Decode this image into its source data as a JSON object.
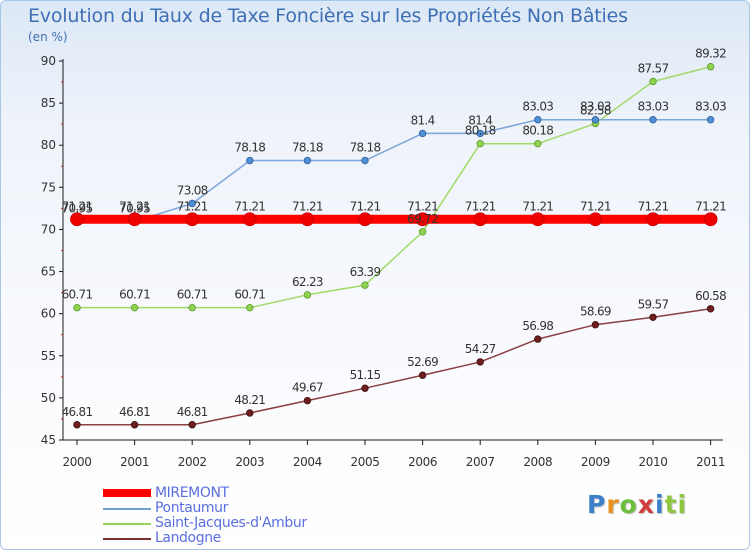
{
  "title": "Evolution du Taux de Taxe Foncière sur les Propriétés Non Bâties",
  "subtitle": "(en %)",
  "logo_text": "Proxiti",
  "chart_data": {
    "type": "line",
    "title": "Evolution du Taux de Taxe Foncière sur les Propriétés Non Bâties",
    "ylabel": "(en %)",
    "xlabel": "",
    "ylim": [
      45,
      90
    ],
    "yticks": [
      45,
      50,
      55,
      60,
      65,
      70,
      75,
      80,
      85,
      90
    ],
    "grid": false,
    "legend_position": "bottom-left",
    "categories": [
      "2000",
      "2001",
      "2002",
      "2003",
      "2004",
      "2005",
      "2006",
      "2007",
      "2008",
      "2009",
      "2010",
      "2011"
    ],
    "series": [
      {
        "name": "MIREMONT",
        "color": "#ff0000",
        "values": [
          71.21,
          71.21,
          71.21,
          71.21,
          71.21,
          71.21,
          71.21,
          71.21,
          71.21,
          71.21,
          71.21,
          71.21
        ],
        "labels": [
          "71.21",
          "71.21",
          "71.21",
          "71.21",
          "71.21",
          "71.21",
          "71.21",
          "71.21",
          "71.21",
          "71.21",
          "71.21",
          "71.21"
        ]
      },
      {
        "name": "Pontaumur",
        "color": "#6f9ed4",
        "values": [
          70.95,
          70.95,
          73.08,
          78.18,
          78.18,
          78.18,
          81.4,
          81.4,
          83.03,
          83.03,
          83.03,
          83.03
        ],
        "labels": [
          "70.95",
          "70.95",
          "73.08",
          "78.18",
          "78.18",
          "78.18",
          "81.4",
          "81.4",
          "83.03",
          "83.03",
          "83.03",
          "83.03"
        ]
      },
      {
        "name": "Saint-Jacques-d'Ambur",
        "color": "#93d45a",
        "values": [
          60.71,
          60.71,
          60.71,
          60.71,
          62.23,
          63.39,
          69.72,
          80.18,
          80.18,
          82.58,
          87.57,
          89.32
        ],
        "labels": [
          "60.71",
          "60.71",
          "60.71",
          "60.71",
          "62.23",
          "63.39",
          "69.72",
          "80.18",
          "80.18",
          "82.58",
          "87.57",
          "89.32"
        ]
      },
      {
        "name": "Landogne",
        "color": "#7a2f2f",
        "values": [
          46.81,
          46.81,
          46.81,
          48.21,
          49.67,
          51.15,
          52.69,
          54.27,
          56.98,
          58.69,
          59.57,
          60.58
        ],
        "labels": [
          "46.81",
          "46.81",
          "46.81",
          "48.21",
          "49.67",
          "51.15",
          "52.69",
          "54.27",
          "56.98",
          "58.69",
          "59.57",
          "60.58"
        ]
      }
    ]
  }
}
